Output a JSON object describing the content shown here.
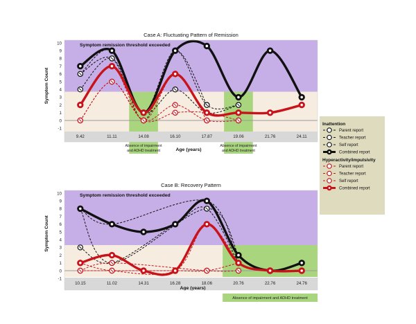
{
  "chart_data": [
    {
      "type": "line",
      "title": "Case A: Fluctuating Pattern of Remission",
      "xlabel": "Age (years)",
      "ylabel": "Symptom Count",
      "ylim": [
        -1,
        10
      ],
      "yticks": [
        -1,
        0,
        1,
        2,
        3,
        4,
        5,
        6,
        7,
        8,
        9,
        10
      ],
      "categories": [
        "9.42",
        "11.11",
        "14.08",
        "16.10",
        "17.87",
        "19.06",
        "21.76",
        "24.11"
      ],
      "threshold_label": "Symptom remission threshold exceeded",
      "threshold_value": 3.7,
      "remission_windows": [
        {
          "label": "Absence of impairment and ADHD treatment",
          "from_index": 2,
          "to_index": 2
        },
        {
          "label": "Absence of impairment and ADHD treatment",
          "from_index": 5,
          "to_index": 5
        }
      ],
      "series": [
        {
          "name": "Inattention - Parent report",
          "group": "inattention",
          "style": "dashed",
          "values": [
            6,
            8,
            1,
            9,
            2,
            2,
            null,
            null
          ]
        },
        {
          "name": "Inattention - Teacher report",
          "group": "inattention",
          "style": "dashed",
          "values": [
            6,
            9,
            0,
            9,
            2,
            null,
            null,
            null
          ]
        },
        {
          "name": "Inattention - Self report",
          "group": "inattention",
          "style": "dashed",
          "values": [
            4,
            8,
            1,
            4,
            1,
            2,
            null,
            null
          ]
        },
        {
          "name": "Inattention - Combined report",
          "group": "inattention",
          "style": "solid",
          "values": [
            7,
            9,
            1,
            9,
            9.6,
            3,
            9,
            3
          ]
        },
        {
          "name": "Hyperactivity/Impulsivity - Parent report",
          "group": "hyperactivity",
          "style": "dashed",
          "values": [
            0,
            5,
            0,
            2,
            0,
            0,
            null,
            null
          ]
        },
        {
          "name": "Hyperactivity/Impulsivity - Teacher report",
          "group": "hyperactivity",
          "style": "dashed",
          "values": [
            2,
            7,
            0,
            6,
            0,
            null,
            null,
            null
          ]
        },
        {
          "name": "Hyperactivity/Impulsivity - Self report",
          "group": "hyperactivity",
          "style": "dashed",
          "values": [
            0,
            5,
            0,
            1,
            1,
            0,
            null,
            null
          ]
        },
        {
          "name": "Hyperactivity/Impulsivity - Combined report",
          "group": "hyperactivity",
          "style": "solid",
          "values": [
            2,
            7,
            1,
            6,
            1,
            1,
            1,
            2
          ]
        }
      ]
    },
    {
      "type": "line",
      "title": "Case B: Recovery Pattern",
      "xlabel": "Age (years)",
      "ylabel": "Symptom Count",
      "ylim": [
        -1,
        10
      ],
      "yticks": [
        -1,
        0,
        1,
        2,
        3,
        4,
        5,
        6,
        7,
        8,
        9,
        10
      ],
      "categories": [
        "10.15",
        "11.02",
        "14.31",
        "16.28",
        "18.06",
        "20.76",
        "22.76",
        "24.76"
      ],
      "threshold_label": "Symptom remission threshold exceeded",
      "threshold_value": 3.3,
      "remission_windows": [
        {
          "label": "Absence of impairment and ADHD treatment",
          "from_index": 5,
          "to_index": 7
        }
      ],
      "series": [
        {
          "name": "Inattention - Parent report",
          "group": "inattention",
          "style": "dashed",
          "values": [
            3,
            1,
            null,
            6,
            8,
            1,
            null,
            null
          ]
        },
        {
          "name": "Inattention - Teacher report",
          "group": "inattention",
          "style": "dashed",
          "values": [
            8,
            1,
            null,
            null,
            8,
            2,
            null,
            null
          ]
        },
        {
          "name": "Inattention - Self report",
          "group": "inattention",
          "style": "dashed",
          "values": [
            8,
            6,
            null,
            null,
            9,
            1,
            null,
            null
          ]
        },
        {
          "name": "Inattention - Combined report",
          "group": "inattention",
          "style": "solid",
          "values": [
            8,
            6,
            5,
            6,
            9,
            2,
            0,
            1
          ]
        },
        {
          "name": "Hyperactivity/Impulsivity - Parent report",
          "group": "hyperactivity",
          "style": "dashed",
          "values": [
            1,
            0,
            null,
            0,
            6,
            1,
            null,
            null
          ]
        },
        {
          "name": "Hyperactivity/Impulsivity - Teacher report",
          "group": "hyperactivity",
          "style": "dashed",
          "values": [
            0,
            0,
            null,
            0,
            0,
            1,
            null,
            null
          ]
        },
        {
          "name": "Hyperactivity/Impulsivity - Self report",
          "group": "hyperactivity",
          "style": "dashed",
          "values": [
            0,
            1,
            null,
            null,
            0,
            0,
            null,
            null
          ]
        },
        {
          "name": "Hyperactivity/Impulsivity - Combined report",
          "group": "hyperactivity",
          "style": "solid",
          "values": [
            1,
            2,
            0,
            0,
            6,
            1,
            0,
            0
          ]
        }
      ]
    }
  ],
  "legend": {
    "inattention_title": "Inattention",
    "hyperactivity_title": "Hyperactivity/impulsivity",
    "parent_label": "Parent report",
    "teacher_label": "Teacher report",
    "self_label": "Self report",
    "combined_label": "Combined report"
  },
  "colors": {
    "inattention": "#111111",
    "hyperactivity": "#c8131b",
    "threshold_band": "#c6aee6",
    "below_band": "#f7ece0",
    "remission": "#a9d57f",
    "axis_band": "#d8d8d8",
    "legend_bg": "#dedbbf"
  }
}
